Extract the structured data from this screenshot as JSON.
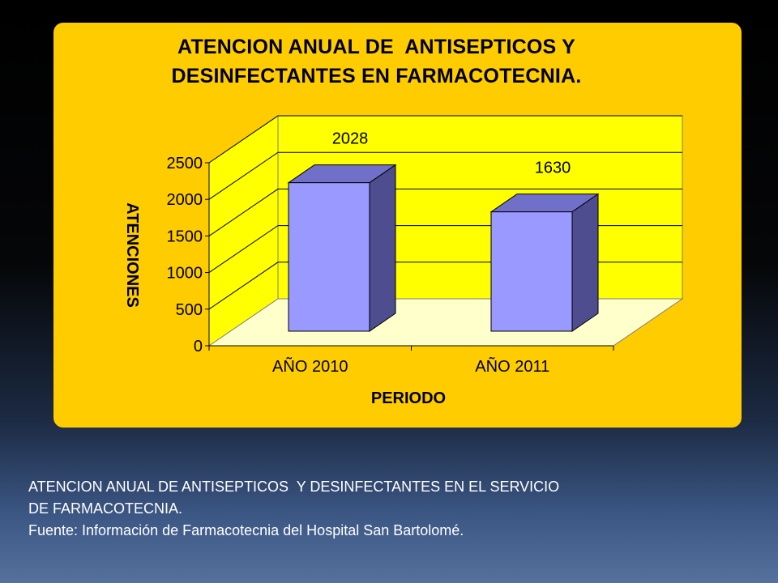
{
  "chart_data": {
    "type": "bar",
    "title_lines": [
      "ATENCION ANUAL DE  ANTISEPTICOS Y",
      "DESINFECTANTES EN FARMACOTECNIA."
    ],
    "categories": [
      "AÑO 2010",
      "AÑO 2011"
    ],
    "values": [
      2028,
      1630
    ],
    "data_labels": [
      "2028",
      "1630"
    ],
    "xlabel": "PERIODO",
    "ylabel": "ATENCIONES",
    "ylim": [
      0,
      2500
    ],
    "yticks": [
      0,
      500,
      1000,
      1500,
      2000,
      2500
    ],
    "ytick_labels": [
      "0",
      "500",
      "1000",
      "1500",
      "2000",
      "2500"
    ],
    "grid": true,
    "legend": "none",
    "colors": {
      "panel": "#ffcc00",
      "wall": "#ffff00",
      "floor": "#ffffcc",
      "bar_front": "#9999ff",
      "bar_side": "#4d4d8f",
      "bar_top": "#7070c8"
    }
  },
  "caption": {
    "line1": "ATENCION ANUAL DE ANTISEPTICOS  Y DESINFECTANTES EN EL SERVICIO",
    "line2": "DE FARMACOTECNIA.",
    "line3": "Fuente: Información de Farmacotecnia del Hospital San Bartolomé."
  }
}
